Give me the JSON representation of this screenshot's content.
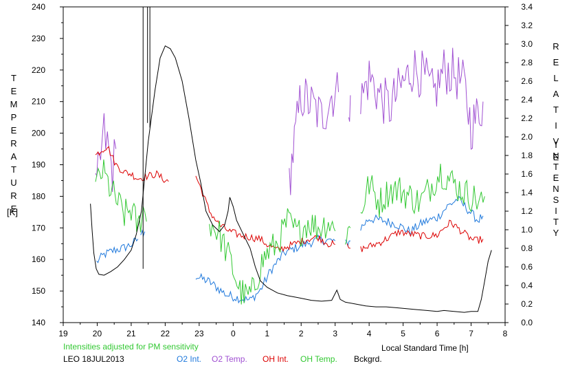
{
  "chart_data": {
    "type": "line",
    "left_axis_title": [
      "T",
      "E",
      "M",
      "P",
      "E",
      "R",
      "A",
      "T",
      "U",
      "R",
      "E"
    ],
    "left_axis_unit": "[K]",
    "right_axis_title_1": [
      "R",
      "E",
      "L",
      "A",
      "T",
      "I",
      "V",
      "E"
    ],
    "right_axis_title_2": [
      "I",
      "N",
      "T",
      "E",
      "N",
      "S",
      "I",
      "T",
      "Y"
    ],
    "x_title": "Local Standard Time [h]",
    "note": "Intensities adjusted for PM sensitivity",
    "station": "LEO 18JUL2013",
    "xlim": [
      19,
      32
    ],
    "x_tick_values": [
      19,
      20,
      21,
      22,
      23,
      24,
      25,
      26,
      27,
      28,
      29,
      30,
      31,
      32
    ],
    "x_tick_labels": [
      "19",
      "20",
      "21",
      "22",
      "23",
      "0",
      "1",
      "2",
      "3",
      "4",
      "5",
      "6",
      "7",
      "8"
    ],
    "ylim_left": [
      140,
      240
    ],
    "y_left_ticks": [
      "240",
      "230",
      "220",
      "210",
      "200",
      "190",
      "180",
      "170",
      "160",
      "150",
      "140"
    ],
    "ylim_right": [
      0.0,
      3.4
    ],
    "y_right_ticks": [
      "3.4",
      "3.2",
      "3.0",
      "2.8",
      "2.6",
      "2.4",
      "2.2",
      "2.0",
      "1.8",
      "1.6",
      "1.4",
      "1.2",
      "1.0",
      "0.8",
      "0.6",
      "0.4",
      "0.2",
      "0.0"
    ],
    "series": [
      {
        "name": "O2 Int.",
        "color": "#1e78dc",
        "axis": "right",
        "noise": 0.05,
        "segments": [
          [
            [
              19.98,
              0.65
            ],
            [
              20.2,
              0.73
            ],
            [
              20.5,
              0.78
            ],
            [
              20.75,
              0.8
            ],
            [
              21.0,
              0.84
            ],
            [
              21.2,
              0.9
            ]
          ],
          [
            [
              21.28,
              0.95
            ],
            [
              21.4,
              0.98
            ]
          ],
          [
            [
              22.9,
              0.5
            ],
            [
              23.3,
              0.44
            ],
            [
              23.8,
              0.3
            ],
            [
              24.2,
              0.26
            ],
            [
              24.5,
              0.24
            ],
            [
              24.8,
              0.35
            ],
            [
              25.1,
              0.56
            ],
            [
              25.5,
              0.75
            ],
            [
              26.0,
              0.83
            ],
            [
              26.5,
              0.89
            ],
            [
              27.0,
              0.88
            ]
          ],
          [
            [
              27.3,
              0.85
            ],
            [
              27.45,
              0.88
            ]
          ],
          [
            [
              27.75,
              1.02
            ],
            [
              28.0,
              1.12
            ],
            [
              28.4,
              1.1
            ],
            [
              28.8,
              1.06
            ],
            [
              29.2,
              0.98
            ],
            [
              29.6,
              1.08
            ],
            [
              30.0,
              1.13
            ],
            [
              30.3,
              1.25
            ],
            [
              30.6,
              1.33
            ],
            [
              30.9,
              1.22
            ],
            [
              31.2,
              1.1
            ],
            [
              31.35,
              1.15
            ]
          ]
        ]
      },
      {
        "name": "O2 Temp.",
        "color": "#a050d2",
        "axis": "left",
        "noise": 8,
        "segments": [
          [
            [
              19.95,
              180
            ],
            [
              20.1,
              192
            ],
            [
              20.2,
              200
            ],
            [
              20.3,
              196
            ],
            [
              20.45,
              188
            ],
            [
              20.55,
              195
            ]
          ],
          [
            [
              25.65,
              185
            ],
            [
              25.8,
              197
            ],
            [
              26.0,
              212
            ],
            [
              26.3,
              209
            ],
            [
              26.6,
              205
            ],
            [
              26.9,
              212
            ],
            [
              27.1,
              213
            ]
          ],
          [
            [
              27.4,
              210
            ],
            [
              27.45,
              212
            ]
          ],
          [
            [
              27.75,
              210
            ],
            [
              28.0,
              218
            ],
            [
              28.3,
              212
            ],
            [
              28.6,
              208
            ],
            [
              28.9,
              214
            ],
            [
              29.3,
              221
            ],
            [
              29.6,
              218
            ],
            [
              29.9,
              212
            ],
            [
              30.2,
              220
            ],
            [
              30.5,
              219
            ],
            [
              30.8,
              215
            ],
            [
              31.0,
              202
            ],
            [
              31.2,
              206
            ],
            [
              31.35,
              210
            ]
          ]
        ]
      },
      {
        "name": "OH Int.",
        "color": "#dc0000",
        "axis": "right",
        "noise": 0.04,
        "segments": [
          [
            [
              19.95,
              1.8
            ],
            [
              20.1,
              1.85
            ],
            [
              20.3,
              1.9
            ],
            [
              20.55,
              1.7
            ],
            [
              20.8,
              1.62
            ],
            [
              21.0,
              1.6
            ],
            [
              21.2,
              1.55
            ],
            [
              21.5,
              1.58
            ],
            [
              21.75,
              1.6
            ],
            [
              21.92,
              1.55
            ],
            [
              22.1,
              1.52
            ]
          ],
          [
            [
              22.9,
              1.58
            ],
            [
              23.1,
              1.4
            ],
            [
              23.3,
              1.2
            ],
            [
              23.6,
              1.05
            ],
            [
              23.9,
              0.98
            ],
            [
              24.2,
              0.94
            ],
            [
              24.5,
              0.92
            ],
            [
              24.8,
              0.9
            ],
            [
              25.0,
              0.84
            ],
            [
              25.3,
              0.78
            ],
            [
              25.6,
              0.82
            ],
            [
              25.9,
              0.86
            ],
            [
              26.2,
              0.9
            ],
            [
              26.5,
              0.92
            ],
            [
              26.8,
              0.85
            ],
            [
              27.0,
              0.84
            ]
          ],
          [
            [
              27.35,
              0.82
            ],
            [
              27.45,
              0.8
            ]
          ],
          [
            [
              27.75,
              0.79
            ],
            [
              28.0,
              0.82
            ],
            [
              28.3,
              0.86
            ],
            [
              28.6,
              0.92
            ],
            [
              28.9,
              0.98
            ],
            [
              29.1,
              0.96
            ],
            [
              29.3,
              0.95
            ],
            [
              29.6,
              0.93
            ],
            [
              30.0,
              0.94
            ],
            [
              30.2,
              1.02
            ],
            [
              30.4,
              1.08
            ],
            [
              30.6,
              1.02
            ],
            [
              30.9,
              0.93
            ],
            [
              31.1,
              0.88
            ],
            [
              31.35,
              0.9
            ]
          ]
        ]
      },
      {
        "name": "OH Temp.",
        "color": "#32c832",
        "axis": "left",
        "noise": 5,
        "segments": [
          [
            [
              19.95,
              183
            ],
            [
              20.15,
              188
            ],
            [
              20.4,
              182
            ],
            [
              20.6,
              178
            ],
            [
              20.8,
              174
            ],
            [
              21.0,
              176
            ],
            [
              21.2,
              170
            ],
            [
              21.35,
              176
            ],
            [
              21.45,
              172
            ]
          ],
          [
            [
              23.3,
              172
            ],
            [
              23.6,
              168
            ],
            [
              23.9,
              160
            ],
            [
              24.2,
              150
            ],
            [
              24.4,
              148
            ],
            [
              24.6,
              150
            ],
            [
              24.8,
              158
            ],
            [
              25.0,
              162
            ],
            [
              25.3,
              165
            ],
            [
              25.6,
              172
            ],
            [
              25.9,
              168
            ],
            [
              26.2,
              172
            ],
            [
              26.5,
              170
            ],
            [
              26.8,
              172
            ],
            [
              27.0,
              169
            ]
          ],
          [
            [
              27.3,
              168
            ],
            [
              27.45,
              170
            ]
          ],
          [
            [
              27.75,
              175
            ],
            [
              28.0,
              184
            ],
            [
              28.3,
              178
            ],
            [
              28.6,
              182
            ],
            [
              28.9,
              182
            ],
            [
              29.2,
              180
            ],
            [
              29.5,
              178
            ],
            [
              29.8,
              183
            ],
            [
              30.1,
              188
            ],
            [
              30.4,
              185
            ],
            [
              30.7,
              182
            ],
            [
              31.0,
              180
            ],
            [
              31.3,
              178
            ],
            [
              31.4,
              180
            ]
          ]
        ]
      },
      {
        "name": "Bckgrd.",
        "color": "#000000",
        "axis": "right",
        "noise": 0,
        "segments": [
          [
            [
              19.8,
              1.28
            ],
            [
              19.85,
              1.0
            ],
            [
              19.9,
              0.75
            ],
            [
              19.97,
              0.58
            ],
            [
              20.05,
              0.52
            ],
            [
              20.2,
              0.51
            ],
            [
              20.4,
              0.55
            ],
            [
              20.6,
              0.6
            ],
            [
              20.8,
              0.68
            ],
            [
              21.0,
              0.78
            ],
            [
              21.15,
              0.95
            ],
            [
              21.3,
              1.2
            ],
            [
              21.5,
              1.95
            ],
            [
              21.7,
              2.5
            ],
            [
              21.85,
              2.85
            ],
            [
              22.0,
              2.98
            ],
            [
              22.15,
              2.95
            ],
            [
              22.3,
              2.85
            ],
            [
              22.5,
              2.6
            ],
            [
              22.7,
              2.2
            ],
            [
              22.9,
              1.75
            ],
            [
              23.05,
              1.5
            ],
            [
              23.2,
              1.2
            ],
            [
              23.4,
              1.05
            ],
            [
              23.6,
              0.98
            ],
            [
              23.75,
              1.05
            ],
            [
              23.85,
              1.2
            ],
            [
              23.9,
              1.35
            ],
            [
              24.0,
              1.25
            ],
            [
              24.1,
              1.1
            ],
            [
              24.3,
              0.95
            ],
            [
              24.5,
              0.8
            ],
            [
              24.65,
              0.6
            ],
            [
              24.8,
              0.45
            ],
            [
              25.0,
              0.38
            ],
            [
              25.3,
              0.32
            ],
            [
              25.6,
              0.29
            ],
            [
              25.9,
              0.27
            ],
            [
              26.3,
              0.24
            ],
            [
              26.6,
              0.23
            ],
            [
              26.9,
              0.24
            ],
            [
              27.05,
              0.35
            ],
            [
              27.15,
              0.25
            ],
            [
              27.3,
              0.22
            ],
            [
              27.6,
              0.2
            ],
            [
              27.9,
              0.18
            ],
            [
              28.2,
              0.17
            ],
            [
              28.5,
              0.17
            ],
            [
              28.8,
              0.16
            ],
            [
              29.1,
              0.15
            ],
            [
              29.4,
              0.14
            ],
            [
              29.7,
              0.13
            ],
            [
              30.0,
              0.12
            ],
            [
              30.2,
              0.13
            ],
            [
              30.5,
              0.12
            ],
            [
              30.8,
              0.11
            ],
            [
              31.0,
              0.12
            ],
            [
              31.2,
              0.12
            ],
            [
              31.3,
              0.25
            ],
            [
              31.4,
              0.45
            ],
            [
              31.5,
              0.66
            ],
            [
              31.6,
              0.78
            ]
          ]
        ]
      }
    ],
    "spikes": [
      {
        "x": 21.35,
        "from": 0.58,
        "to": 3.4,
        "color": "#000000"
      },
      {
        "x": 21.48,
        "from": 2.15,
        "to": 3.4,
        "color": "#000000"
      },
      {
        "x": 21.55,
        "from": 2.1,
        "to": 3.4,
        "color": "#000000"
      }
    ]
  },
  "legend": [
    {
      "label": "O2 Int.",
      "color": "#1e78dc"
    },
    {
      "label": "O2 Temp.",
      "color": "#a050d2"
    },
    {
      "label": "OH Int.",
      "color": "#dc0000"
    },
    {
      "label": "OH Temp.",
      "color": "#32c832"
    },
    {
      "label": "Bckgrd.",
      "color": "#000000"
    }
  ],
  "note_color": "#32c832"
}
